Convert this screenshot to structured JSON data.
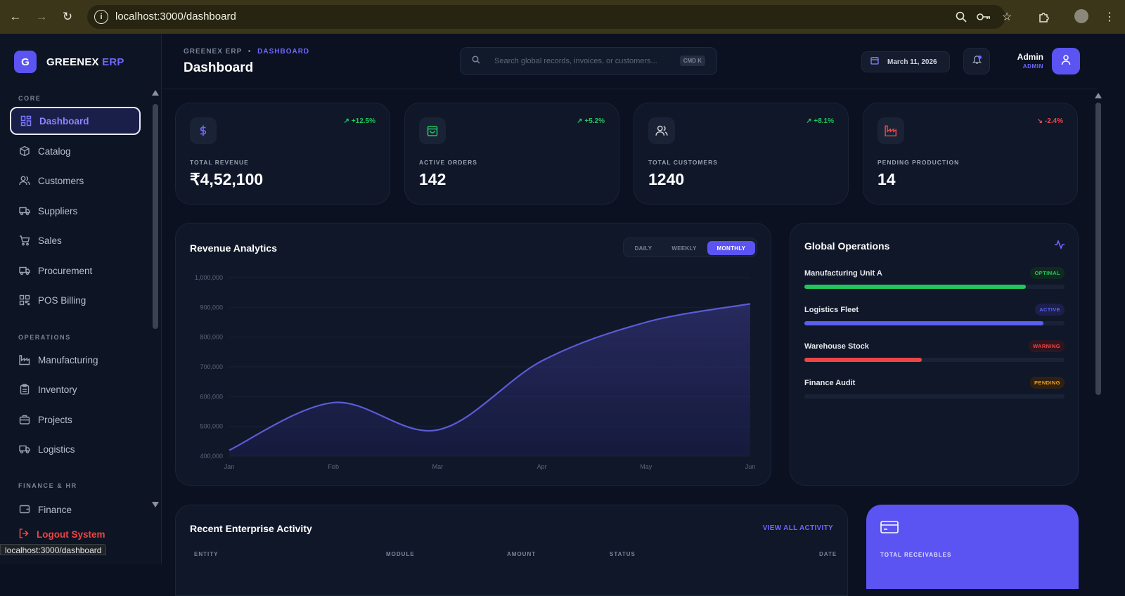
{
  "browser": {
    "url": "localhost:3000/dashboard",
    "status_url": "localhost:3000/dashboard"
  },
  "brand": {
    "logo_letter": "G",
    "name": "GREENEX",
    "name_accent": "ERP"
  },
  "sidebar": {
    "sections": {
      "core": "CORE",
      "operations": "OPERATIONS",
      "finance": "FINANCE & HR"
    },
    "items": [
      {
        "label": "Dashboard",
        "icon": "dashboard-icon"
      },
      {
        "label": "Catalog",
        "icon": "box-icon"
      },
      {
        "label": "Customers",
        "icon": "users-icon"
      },
      {
        "label": "Suppliers",
        "icon": "truck-icon"
      },
      {
        "label": "Sales",
        "icon": "cart-icon"
      },
      {
        "label": "Procurement",
        "icon": "truck-icon"
      },
      {
        "label": "POS Billing",
        "icon": "qrcode-icon"
      },
      {
        "label": "Manufacturing",
        "icon": "factory-icon"
      },
      {
        "label": "Inventory",
        "icon": "clipboard-icon"
      },
      {
        "label": "Projects",
        "icon": "briefcase-icon"
      },
      {
        "label": "Logistics",
        "icon": "truck-icon"
      },
      {
        "label": "Finance",
        "icon": "wallet-icon"
      }
    ],
    "logout": "Logout System"
  },
  "header": {
    "breadcrumb_root": "GREENEX ERP",
    "breadcrumb_sep": "•",
    "breadcrumb_current": "DASHBOARD",
    "title": "Dashboard",
    "search_placeholder": "Search global records, invoices, or customers...",
    "search_shortcut": "CMD K",
    "date": "March 11, 2026",
    "user_name": "Admin",
    "user_role": "ADMIN"
  },
  "stats": [
    {
      "label": "TOTAL REVENUE",
      "value": "₹4,52,100",
      "delta": "+12.5%",
      "trend": "up",
      "icon": "dollar-icon",
      "color": "#6e68ff"
    },
    {
      "label": "ACTIVE ORDERS",
      "value": "142",
      "delta": "+5.2%",
      "trend": "up",
      "icon": "shopping-bag-icon",
      "color": "#22c55e"
    },
    {
      "label": "TOTAL CUSTOMERS",
      "value": "1240",
      "delta": "+8.1%",
      "trend": "up",
      "icon": "users-icon",
      "color": "#d1d5db"
    },
    {
      "label": "PENDING PRODUCTION",
      "value": "14",
      "delta": "-2.4%",
      "trend": "down",
      "icon": "factory-icon",
      "color": "#ef4444"
    }
  ],
  "revenue": {
    "title": "Revenue Analytics",
    "periods": [
      "DAILY",
      "WEEKLY",
      "MONTHLY"
    ],
    "active_period": "MONTHLY"
  },
  "chart_data": {
    "type": "area",
    "title": "Revenue Analytics",
    "categories": [
      "Jan",
      "Feb",
      "Mar",
      "Apr",
      "May",
      "Jun"
    ],
    "series": [
      {
        "values": [
          420000,
          580000,
          488000,
          720000,
          850000,
          912000
        ]
      }
    ],
    "ylim": [
      400000,
      1000000
    ],
    "yticks": [
      "400,000",
      "500,000",
      "600,000",
      "700,000",
      "800,000",
      "900,000",
      "1,000,000"
    ],
    "grid": true,
    "color": "#5b5bd6"
  },
  "operations": {
    "title": "Global Operations",
    "items": [
      {
        "name": "Manufacturing Unit A",
        "status": "OPTIMAL",
        "progress": 0.85,
        "color": "#22c55e",
        "badge_bg": "#0f2a1e"
      },
      {
        "name": "Logistics Fleet",
        "status": "ACTIVE",
        "progress": 0.92,
        "color": "#5b5ff0",
        "badge_bg": "#1c1f4a"
      },
      {
        "name": "Warehouse Stock",
        "status": "WARNING",
        "progress": 0.45,
        "color": "#ef4444",
        "badge_bg": "#2e1620"
      },
      {
        "name": "Finance Audit",
        "status": "PENDING",
        "progress": 0.0,
        "color": "#f59e0b",
        "badge_bg": "#2e2114"
      }
    ]
  },
  "activity": {
    "title": "Recent Enterprise Activity",
    "link": "VIEW ALL ACTIVITY",
    "columns": [
      "ENTITY",
      "MODULE",
      "AMOUNT",
      "STATUS",
      "DATE"
    ]
  },
  "receivables": {
    "label": "TOTAL RECEIVABLES"
  }
}
